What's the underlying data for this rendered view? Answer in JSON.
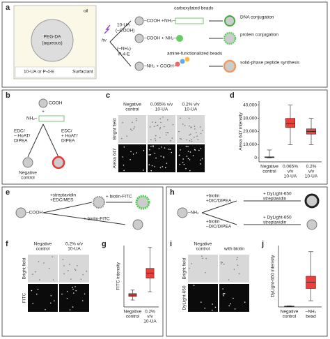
{
  "panel_a": {
    "label": "a",
    "oil": "oil",
    "bead_top": "PEG-DA",
    "bead_bottom": "(aqueous)",
    "light": "hv",
    "ua": "10-UA",
    "ua_group": "(–COOH)",
    "pe_group": "(–NH₂)",
    "pe": "P-4-E",
    "carboxylated": "carboxylated beads",
    "cooh1": "–COOH +",
    "nh2_dna": "NH₂–",
    "dna": "DNA conjugation",
    "cooh2": "–COOH + NH₂–",
    "protein": "protein conjugation",
    "amine": "amine-functionalized beads",
    "nh2_peptide": "–NH₂ + COOH–",
    "peptide": "solid-phase peptide synthesis",
    "legend_linker": "10-UA or P-4-E",
    "legend_surfactant": "Surfactant"
  },
  "panel_b": {
    "label": "b",
    "cooh": "COOH",
    "plus": "+",
    "nh2": "NH₂–",
    "left_cond": [
      "EDC/",
      "– HoAT/",
      "DIPEA"
    ],
    "right_cond": [
      "EDC/",
      "+ HoAT/",
      "DIPEA"
    ],
    "negative": [
      "Negative",
      "control"
    ]
  },
  "panel_c": {
    "label": "c",
    "cols": [
      [
        "Negative",
        "control"
      ],
      [
        "0.065% v/v",
        "10-UA"
      ],
      [
        "0.2% v/v",
        "10-UA"
      ]
    ],
    "rows": [
      "Bright field",
      "Alexa 647"
    ]
  },
  "panel_d": {
    "label": "d"
  },
  "panel_e": {
    "label": "e",
    "cooh": "–COOH",
    "step1": [
      "+streptavidin",
      "+EDC/MES"
    ],
    "step2a": "+ biotin-FITC",
    "step2b": "+ biotin-FITC"
  },
  "panel_f": {
    "label": "f",
    "cols": [
      [
        "Negative",
        "control"
      ],
      [
        "0.2% v/v",
        "10-UA"
      ]
    ],
    "rows": [
      "Bright field",
      "FITC"
    ]
  },
  "panel_g": {
    "label": "g"
  },
  "panel_h": {
    "label": "h",
    "nh2": "–NH₂",
    "step1a": [
      "+biotin",
      "+DIC/DIPEA"
    ],
    "step1b": [
      "+biotin",
      "–DIC/DIPEA"
    ],
    "step2a": [
      "+ DyLight-650",
      "streptavidin"
    ],
    "step2b": [
      "+ DyLight-650",
      "streptavidin"
    ]
  },
  "panel_i": {
    "label": "i",
    "cols": [
      [
        "Negative",
        "control"
      ],
      [
        "with biotin"
      ]
    ],
    "rows": [
      "Bright field",
      "DyLight-650"
    ]
  },
  "panel_j": {
    "label": "j"
  },
  "chart_data": [
    {
      "type": "box",
      "y_label": "Alexa 647 intensity",
      "categories": [
        [
          "Negative",
          "control"
        ],
        [
          "0.065%",
          "v/v",
          "10-UA"
        ],
        [
          "0.2%",
          "v/v",
          "10-UA"
        ]
      ],
      "color": "#e8413c",
      "ylim": [
        -3000,
        43000
      ],
      "yticks": [
        {
          "value": 0,
          "label": "0"
        },
        {
          "value": 10000,
          "label": "10,000"
        },
        {
          "value": 20000,
          "label": "20,000"
        },
        {
          "value": 30000,
          "label": "30,000"
        },
        {
          "value": 40000,
          "label": "40,000"
        }
      ],
      "boxes": [
        {
          "min": 0,
          "q1": 200,
          "median": 500,
          "q3": 800,
          "max": 6000
        },
        {
          "min": 10000,
          "q1": 23000,
          "median": 26000,
          "q3": 30000,
          "max": 40000
        },
        {
          "min": 10000,
          "q1": 18000,
          "median": 20000,
          "q3": 22000,
          "max": 30000
        }
      ]
    },
    {
      "type": "box",
      "y_label": "FITC intensity",
      "categories": [
        [
          "Negative",
          "control"
        ],
        [
          "0.2%",
          "v/v",
          "10-UA"
        ]
      ],
      "color": "#e8413c",
      "ylim": [
        0,
        6200
      ],
      "boxes": [
        {
          "min": 700,
          "q1": 1050,
          "median": 1200,
          "q3": 1350,
          "max": 1700
        },
        {
          "min": 1500,
          "q1": 2900,
          "median": 3400,
          "q3": 3900,
          "max": 6000
        }
      ]
    },
    {
      "type": "box",
      "y_label": "DyLight-650 intensity",
      "categories": [
        [
          "Negative",
          "control"
        ],
        [
          "–NH₂",
          "bead"
        ]
      ],
      "color": "#e8413c",
      "ylim": [
        0,
        50
      ],
      "boxes": [
        {
          "min": 0.2,
          "q1": 0.4,
          "median": 0.5,
          "q3": 0.6,
          "max": 0.8
        },
        {
          "min": 5,
          "q1": 15,
          "median": 20,
          "q3": 25,
          "max": 45
        }
      ]
    }
  ]
}
